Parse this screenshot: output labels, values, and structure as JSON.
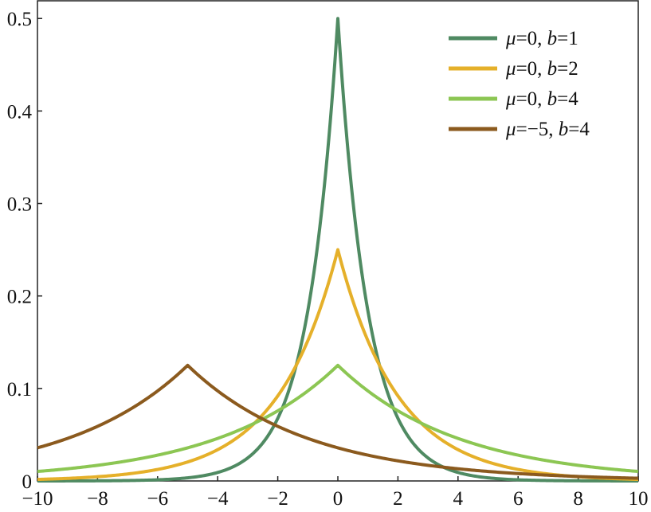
{
  "chart_data": {
    "type": "line",
    "title": "",
    "xlabel": "",
    "ylabel": "",
    "xlim": [
      -10,
      10
    ],
    "ylim": [
      0,
      0.52
    ],
    "x_ticks": [
      -10,
      -8,
      -6,
      -4,
      -2,
      0,
      2,
      4,
      6,
      8,
      10
    ],
    "x_tick_labels": [
      "−10",
      "−8",
      "−6",
      "−4",
      "−2",
      "0",
      "2",
      "4",
      "6",
      "8",
      "10"
    ],
    "y_ticks": [
      0,
      0.1,
      0.2,
      0.3,
      0.4,
      0.5
    ],
    "y_tick_labels": [
      "0",
      "0.1",
      "0.2",
      "0.3",
      "0.4",
      "0.5"
    ],
    "grid": false,
    "legend_position": "top-right",
    "x": [
      -10,
      -9,
      -8,
      -7,
      -6,
      -5,
      -4,
      -3,
      -2,
      -1,
      0,
      1,
      2,
      3,
      4,
      5,
      6,
      7,
      8,
      9,
      10
    ],
    "series": [
      {
        "legend": {
          "mu_sym": "μ",
          "mu_val": "=0, ",
          "b_sym": "b",
          "b_val": "=1"
        },
        "color": "#4f8a62",
        "mu": 0,
        "b": 1,
        "values": [
          0.0,
          0.0,
          0.0,
          0.0,
          0.0,
          0.0,
          0.0,
          0.024,
          0.068,
          0.184,
          0.452,
          0.184,
          0.068,
          0.024,
          0.009,
          0.003,
          0.001,
          0.0,
          0.0,
          0.0,
          0.0
        ]
      },
      {
        "legend": {
          "mu_sym": "μ",
          "mu_val": "=0, ",
          "b_sym": "b",
          "b_val": "=2"
        },
        "color": "#e5b02a",
        "mu": 0,
        "b": 2,
        "values": [
          0.002,
          0.003,
          0.005,
          0.008,
          0.013,
          0.02,
          0.034,
          0.056,
          0.092,
          0.152,
          0.238,
          0.152,
          0.092,
          0.056,
          0.034,
          0.02,
          0.013,
          0.008,
          0.005,
          0.003,
          0.002
        ]
      },
      {
        "legend": {
          "mu_sym": "μ",
          "mu_val": "=0, ",
          "b_sym": "b",
          "b_val": "=4"
        },
        "color": "#8cc653",
        "mu": 0,
        "b": 4,
        "values": [
          0.01,
          0.013,
          0.017,
          0.022,
          0.028,
          0.036,
          0.046,
          0.059,
          0.076,
          0.097,
          0.12,
          0.097,
          0.076,
          0.059,
          0.046,
          0.036,
          0.028,
          0.022,
          0.017,
          0.013,
          0.01
        ]
      },
      {
        "legend": {
          "mu_sym": "μ",
          "mu_val": "=−5, ",
          "b_sym": "b",
          "b_val": "=4"
        },
        "color": "#8b5a1e",
        "mu": -5,
        "b": 4,
        "values": [
          0.036,
          0.046,
          0.059,
          0.076,
          0.097,
          0.122,
          0.097,
          0.076,
          0.059,
          0.046,
          0.036,
          0.028,
          0.022,
          0.017,
          0.013,
          0.01,
          0.008,
          0.006,
          0.005,
          0.004,
          0.003
        ]
      }
    ]
  }
}
